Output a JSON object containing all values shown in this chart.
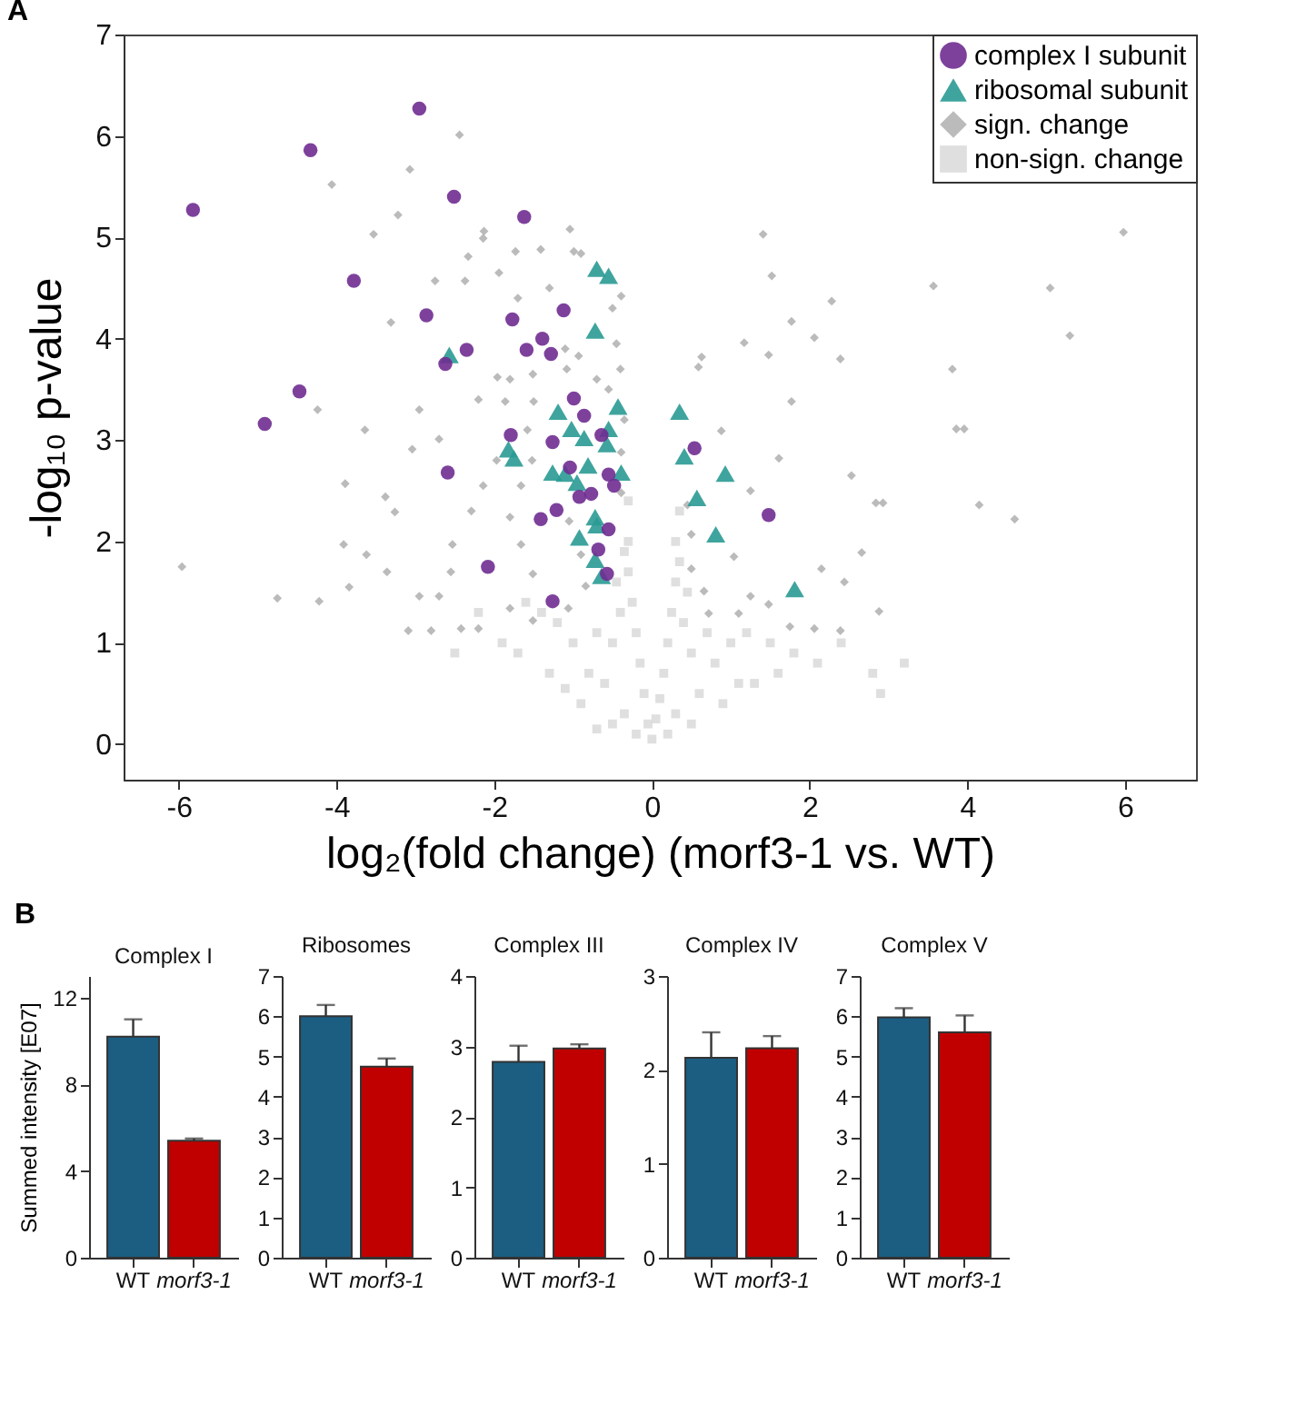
{
  "chart_data": [
    {
      "type": "scatter",
      "xlabel": "log₂(fold change)     (morf3-1 vs. WT)",
      "ylabel": "-log₁₀ p-value",
      "annotations": [
        "A"
      ],
      "xlim": [
        -6.7,
        6.9
      ],
      "ylim": [
        -0.35,
        7
      ],
      "xticks": [
        -6,
        -4,
        -2,
        0,
        2,
        4,
        6
      ],
      "yticks": [
        0,
        1,
        2,
        3,
        4,
        5,
        6,
        7
      ],
      "grid": false,
      "legend": "top right",
      "series": [
        {
          "name": "complex I subunit",
          "color": "#6f2c91",
          "marker": "circle",
          "x": [
            -5.82,
            -4.91,
            -4.47,
            -4.33,
            -3.78,
            -2.95,
            -2.51,
            -2.86,
            -2.35,
            -2.62,
            -1.62,
            -1.77,
            -1.39,
            -1.59,
            -1.28,
            -1.12,
            -0.99,
            -0.86,
            -1.79,
            -1.26,
            -0.64,
            -1.04,
            -0.55,
            -0.48,
            -0.92,
            -0.77,
            -1.21,
            -1.41,
            -0.55,
            -0.68,
            -0.57,
            -2.08,
            -1.26,
            -2.59,
            0.54,
            1.48
          ],
          "values": [
            5.27,
            3.16,
            3.48,
            5.86,
            4.57,
            6.27,
            5.4,
            4.23,
            3.89,
            3.75,
            5.2,
            4.19,
            4.0,
            3.89,
            3.85,
            4.28,
            3.41,
            3.24,
            3.05,
            2.98,
            3.05,
            2.73,
            2.66,
            2.55,
            2.44,
            2.47,
            2.31,
            2.22,
            2.12,
            1.92,
            1.68,
            1.75,
            1.41,
            2.68,
            2.92,
            2.26
          ]
        },
        {
          "name": "ribosomal subunit",
          "color": "#2a9a94",
          "marker": "triangle",
          "x": [
            -0.7,
            -0.55,
            -0.72,
            -2.57,
            -1.19,
            -0.43,
            0.35,
            -1.02,
            -0.86,
            -0.55,
            -0.57,
            -1.82,
            -1.75,
            -1.26,
            -1.1,
            -0.81,
            -0.39,
            -0.95,
            -0.72,
            -0.7,
            -0.92,
            -0.72,
            -0.64,
            0.41,
            0.93,
            0.57,
            0.81,
            1.81
          ],
          "values": [
            4.69,
            4.62,
            4.08,
            3.84,
            3.28,
            3.33,
            3.28,
            3.11,
            3.02,
            3.11,
            2.96,
            2.91,
            2.82,
            2.68,
            2.67,
            2.75,
            2.68,
            2.58,
            2.24,
            2.16,
            2.04,
            1.82,
            1.66,
            2.84,
            2.67,
            2.43,
            2.07,
            1.53
          ]
        },
        {
          "name": "sign. change",
          "color": "#b4b4b4",
          "marker": "diamond",
          "x": [
            -2.44,
            -3.07,
            -4.06,
            -3.22,
            -3.53,
            -2.13,
            -2.14,
            -2.33,
            -1.73,
            -1.41,
            -1.04,
            -0.99,
            -0.9,
            -2.75,
            -2.37,
            -1.94,
            -3.31,
            -0.39,
            -1.7,
            -1.3,
            -1.8,
            -2.2,
            -1.1,
            -0.5,
            -0.45,
            -0.4,
            -5.96,
            -4.75,
            -4.22,
            -3.84,
            -3.91,
            -3.62,
            -3.89,
            -3.38,
            -3.26,
            -3.04,
            -3.64,
            -2.95,
            -4.24,
            -3.36,
            -2.95,
            -3.09,
            -2.8,
            -2.42,
            -2.2,
            -2.7,
            -2.55,
            -2.53,
            -2.29,
            -2.14,
            -1.97,
            -1.86,
            -1.96,
            -1.51,
            -1.08,
            -0.93,
            -0.7,
            -0.55,
            -1.5,
            -1.58,
            -1.52,
            -1.66,
            -1.8,
            -1.66,
            -1.51,
            -1.8,
            -1.51,
            -1.06,
            -0.84,
            -0.9,
            -1.05,
            -0.39,
            -0.39,
            -0.35,
            -2.7,
            1.41,
            5.98,
            1.52,
            3.57,
            2.28,
            1.77,
            2.06,
            3.81,
            2.39,
            0.63,
            3.86,
            3.96,
            4.15,
            4.6,
            2.93,
            2.84,
            2.53,
            2.66,
            2.88,
            2.39,
            2.06,
            1.75,
            1.48,
            1.25,
            0.66,
            0.5,
            0.45,
            1.25,
            1.61,
            0.88,
            1.77,
            1.48,
            1.17,
            0.59,
            2.15,
            2.44,
            1.04,
            0.5,
            0.72,
            1.1,
            5.05,
            5.3
          ],
          "values": [
            6.01,
            5.67,
            5.52,
            5.22,
            5.03,
            5.06,
            4.99,
            4.81,
            4.86,
            4.88,
            5.08,
            4.86,
            4.84,
            4.57,
            4.57,
            4.65,
            4.16,
            4.42,
            4.4,
            4.5,
            3.6,
            3.4,
            3.9,
            4.3,
            3.95,
            3.7,
            1.75,
            1.44,
            1.41,
            1.55,
            1.97,
            1.87,
            2.57,
            2.44,
            2.29,
            2.91,
            3.1,
            3.3,
            3.3,
            1.7,
            1.46,
            1.12,
            1.12,
            1.14,
            1.14,
            1.46,
            1.7,
            1.97,
            2.3,
            2.55,
            2.8,
            3.38,
            3.62,
            3.65,
            3.7,
            3.83,
            3.6,
            3.5,
            3.38,
            3.1,
            2.8,
            2.55,
            2.24,
            1.97,
            1.68,
            1.34,
            1.22,
            1.34,
            1.56,
            1.87,
            2.2,
            2.48,
            2.88,
            3.2,
            3.01,
            5.03,
            5.05,
            4.62,
            4.52,
            4.37,
            4.17,
            4.01,
            3.7,
            3.8,
            3.82,
            3.11,
            3.11,
            2.36,
            2.22,
            2.38,
            2.38,
            2.65,
            1.89,
            1.31,
            1.12,
            1.14,
            1.16,
            1.38,
            1.46,
            1.51,
            2.07,
            2.36,
            2.5,
            2.82,
            3.09,
            3.38,
            3.84,
            3.96,
            3.72,
            1.73,
            1.6,
            1.85,
            1.73,
            1.29,
            1.29,
            4.5,
            4.03
          ]
        },
        {
          "name": "non-sign. change",
          "color": "#dcdcdc",
          "marker": "square",
          "x": [
            0,
            -0.05,
            0.05,
            -0.1,
            0.1,
            -0.15,
            0.15,
            -0.2,
            0.2,
            -0.25,
            0.25,
            -0.3,
            0.3,
            -0.3,
            0.3,
            -0.3,
            0.35,
            -0.35,
            0.3,
            -0.5,
            0.5,
            -0.7,
            0.6,
            -0.6,
            -0.5,
            0.5,
            -0.8,
            0.8,
            -0.4,
            0.4,
            -0.7,
            0.7,
            -1.0,
            1.0,
            -1.2,
            1.2,
            -1.4,
            -1.6,
            1.5,
            -1.9,
            1.8,
            -2.2,
            2.1,
            -2.5,
            2.4,
            2.8,
            -0.9,
            0.9,
            -1.3,
            1.3,
            -1.7,
            1.6,
            3.2,
            2.9,
            -1.1,
            1.1,
            -0.2,
            0.2,
            -0.35,
            0.35,
            -0.45,
            0.45
          ],
          "values": [
            0.05,
            0.2,
            0.25,
            0.5,
            0.45,
            0.8,
            0.7,
            1.1,
            1.0,
            1.4,
            1.3,
            1.7,
            1.6,
            2.0,
            2.0,
            2.4,
            2.3,
            0.3,
            0.3,
            0.2,
            0.2,
            0.15,
            0.5,
            0.6,
            1.0,
            0.9,
            0.7,
            0.8,
            1.3,
            1.2,
            1.1,
            1.1,
            1.0,
            1.0,
            1.2,
            1.1,
            1.3,
            1.4,
            1.0,
            1.0,
            0.9,
            1.3,
            0.8,
            0.9,
            1.0,
            0.7,
            0.4,
            0.4,
            0.7,
            0.6,
            0.9,
            0.7,
            0.8,
            0.5,
            0.55,
            0.6,
            0.1,
            0.1,
            1.9,
            1.8,
            1.6,
            1.5
          ]
        }
      ]
    },
    {
      "type": "bar",
      "title": "Complex I",
      "ylabel": "Summed intensity [E07]",
      "annotations": [
        "B"
      ],
      "categories": [
        "WT",
        "morf3-1"
      ],
      "values": [
        10.2,
        5.4
      ],
      "errors": [
        [
          10.2,
          11.0
        ],
        [
          5.4,
          5.5
        ]
      ],
      "colors": [
        "#1b5e82",
        "#c00000"
      ],
      "ylim": [
        0,
        13
      ],
      "yticks": [
        0,
        4,
        8,
        12
      ],
      "grid": false
    },
    {
      "type": "bar",
      "title": "Ribosomes",
      "categories": [
        "WT",
        "morf3-1"
      ],
      "values": [
        6.0,
        4.75
      ],
      "errors": [
        [
          6.0,
          6.28
        ],
        [
          4.75,
          4.95
        ]
      ],
      "colors": [
        "#1b5e82",
        "#c00000"
      ],
      "ylim": [
        0,
        7
      ],
      "yticks": [
        0,
        1,
        2,
        3,
        4,
        5,
        6,
        7
      ],
      "grid": false
    },
    {
      "type": "bar",
      "title": "Complex III",
      "categories": [
        "WT",
        "morf3-1"
      ],
      "values": [
        2.78,
        2.97
      ],
      "errors": [
        [
          2.78,
          3.01
        ],
        [
          2.97,
          3.03
        ]
      ],
      "colors": [
        "#1b5e82",
        "#c00000"
      ],
      "ylim": [
        0,
        4
      ],
      "yticks": [
        0,
        1,
        2,
        3,
        4
      ],
      "grid": false
    },
    {
      "type": "bar",
      "title": "Complex IV",
      "categories": [
        "WT",
        "morf3-1"
      ],
      "values": [
        2.13,
        2.23
      ],
      "errors": [
        [
          2.13,
          2.4
        ],
        [
          2.23,
          2.36
        ]
      ],
      "colors": [
        "#1b5e82",
        "#c00000"
      ],
      "ylim": [
        0,
        3
      ],
      "yticks": [
        0,
        1,
        2,
        3
      ],
      "grid": false
    },
    {
      "type": "bar",
      "title": "Complex V",
      "categories": [
        "WT",
        "morf3-1"
      ],
      "values": [
        5.97,
        5.6
      ],
      "errors": [
        [
          5.97,
          6.2
        ],
        [
          5.6,
          6.02
        ]
      ],
      "colors": [
        "#1b5e82",
        "#c00000"
      ],
      "ylim": [
        0,
        7
      ],
      "yticks": [
        0,
        1,
        2,
        3,
        4,
        5,
        6,
        7
      ],
      "grid": false
    }
  ]
}
